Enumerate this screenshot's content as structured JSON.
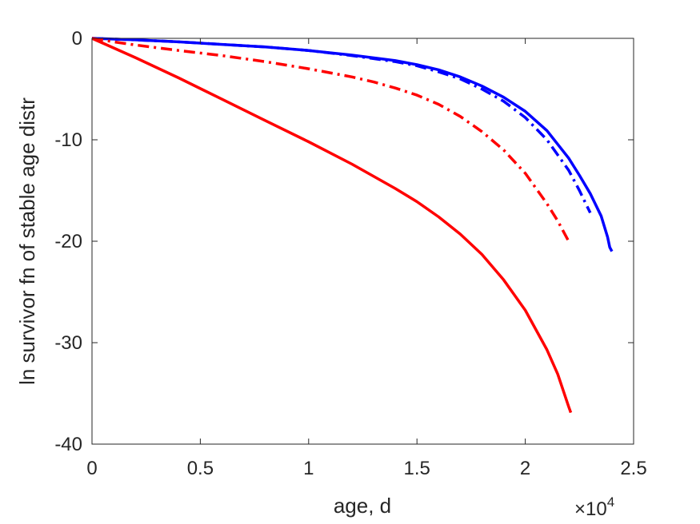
{
  "chart_data": {
    "type": "line",
    "title": "",
    "xlabel": "age, d",
    "ylabel": "ln survivor fn of stable age distr",
    "xlim": [
      0,
      25000
    ],
    "ylim": [
      -40,
      0
    ],
    "x_ticks": [
      0,
      5000,
      10000,
      15000,
      20000,
      25000
    ],
    "x_tick_labels": [
      "0",
      "0.5",
      "1",
      "1.5",
      "2",
      "2.5"
    ],
    "x_exponent": {
      "base": "×10",
      "power": "4"
    },
    "y_ticks": [
      -40,
      -30,
      -20,
      -10,
      0
    ],
    "y_tick_labels": [
      "-40",
      "-30",
      "-20",
      "-10",
      "0"
    ],
    "grid": false,
    "legend": "none",
    "series": [
      {
        "color": "#0000ff",
        "style": "solid",
        "x": [
          0,
          2000,
          4000,
          6000,
          8000,
          10000,
          12000,
          14000,
          15000,
          16000,
          17000,
          18000,
          19000,
          20000,
          21000,
          22000,
          22500,
          23000,
          23500,
          23800,
          23900,
          24000
        ],
        "y": [
          0,
          -0.15,
          -0.35,
          -0.6,
          -0.85,
          -1.2,
          -1.65,
          -2.2,
          -2.6,
          -3.1,
          -3.8,
          -4.7,
          -5.8,
          -7.2,
          -9.1,
          -11.8,
          -13.5,
          -15.3,
          -17.5,
          -19.6,
          -20.6,
          -21.0
        ]
      },
      {
        "color": "#0000ff",
        "style": "dashdot",
        "x": [
          0,
          2000,
          4000,
          6000,
          8000,
          10000,
          12000,
          14000,
          15000,
          16000,
          17000,
          18000,
          19000,
          20000,
          21000,
          22000,
          22500,
          23000
        ],
        "y": [
          0,
          -0.15,
          -0.35,
          -0.6,
          -0.85,
          -1.2,
          -1.7,
          -2.3,
          -2.7,
          -3.3,
          -4.0,
          -5.0,
          -6.2,
          -7.8,
          -10.0,
          -13.0,
          -15.0,
          -17.2
        ]
      },
      {
        "color": "#ff0000",
        "style": "dashdot",
        "x": [
          0,
          1000,
          2000,
          4000,
          6000,
          8000,
          10000,
          12000,
          13000,
          14000,
          15000,
          16000,
          17000,
          18000,
          19000,
          20000,
          21000,
          21500,
          22000
        ],
        "y": [
          0,
          -0.35,
          -0.65,
          -1.2,
          -1.7,
          -2.3,
          -3.0,
          -3.8,
          -4.3,
          -4.9,
          -5.6,
          -6.5,
          -7.7,
          -9.2,
          -11.0,
          -13.3,
          -16.3,
          -18.0,
          -20.0
        ]
      },
      {
        "color": "#ff0000",
        "style": "solid",
        "x": [
          0,
          2000,
          4000,
          6000,
          8000,
          10000,
          12000,
          14000,
          15000,
          16000,
          17000,
          18000,
          19000,
          20000,
          21000,
          21500,
          22000,
          22100
        ],
        "y": [
          0,
          -1.9,
          -3.9,
          -6.0,
          -8.1,
          -10.2,
          -12.4,
          -14.8,
          -16.1,
          -17.6,
          -19.3,
          -21.3,
          -23.8,
          -26.8,
          -30.7,
          -33.1,
          -36.3,
          -36.9
        ]
      }
    ]
  }
}
